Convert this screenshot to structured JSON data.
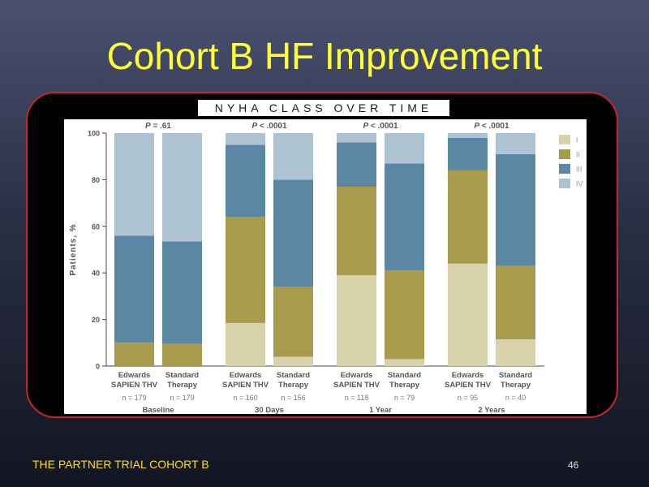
{
  "slide": {
    "title": "Cohort B HF Improvement",
    "footer": "THE PARTNER TRIAL COHORT B",
    "page_number": "46"
  },
  "chart_data": {
    "type": "bar",
    "stacked": true,
    "title": "NYHA CLASS OVER TIME",
    "ylabel": "Patients, %",
    "ylim": [
      0,
      100
    ],
    "yticks": [
      0,
      20,
      40,
      60,
      80,
      100
    ],
    "legend_position": "right",
    "series": [
      {
        "name": "I",
        "color": "#d8d2ac"
      },
      {
        "name": "II",
        "color": "#a99b4d"
      },
      {
        "name": "III",
        "color": "#5c87a4"
      },
      {
        "name": "IV",
        "color": "#aec3d2"
      }
    ],
    "groups": [
      {
        "label": "Baseline",
        "p_prefix": "P",
        "p_value": " = .61",
        "bars": [
          {
            "line1": "Edwards",
            "line2": "SAPIEN THV",
            "n": "n = 179",
            "values": [
              0,
              10,
              46,
              44
            ]
          },
          {
            "line1": "Standard",
            "line2": "Therapy",
            "n": "n = 179",
            "values": [
              0,
              9.5,
              44,
              46.5
            ]
          }
        ]
      },
      {
        "label": "30 Days",
        "p_prefix": "P",
        "p_value": " < .0001",
        "bars": [
          {
            "line1": "Edwards",
            "line2": "SAPIEN THV",
            "n": "n = 160",
            "values": [
              18.5,
              45.5,
              31,
              5
            ]
          },
          {
            "line1": "Standard",
            "line2": "Therapy",
            "n": "n = 156",
            "values": [
              4,
              30,
              46,
              20
            ]
          }
        ]
      },
      {
        "label": "1 Year",
        "p_prefix": "P",
        "p_value": " < .0001",
        "bars": [
          {
            "line1": "Edwards",
            "line2": "SAPIEN THV",
            "n": "n = 118",
            "values": [
              39,
              38,
              19,
              4
            ]
          },
          {
            "line1": "Standard",
            "line2": "Therapy",
            "n": "n = 79",
            "values": [
              3,
              38,
              46,
              13
            ]
          }
        ]
      },
      {
        "label": "2 Years",
        "p_prefix": "P",
        "p_value": " < .0001",
        "bars": [
          {
            "line1": "Edwards",
            "line2": "SAPIEN THV",
            "n": "n = 95",
            "values": [
              44,
              40,
              14,
              2
            ]
          },
          {
            "line1": "Standard",
            "line2": "Therapy",
            "n": "n = 40",
            "values": [
              11.5,
              31.5,
              48,
              9
            ]
          }
        ]
      }
    ]
  }
}
